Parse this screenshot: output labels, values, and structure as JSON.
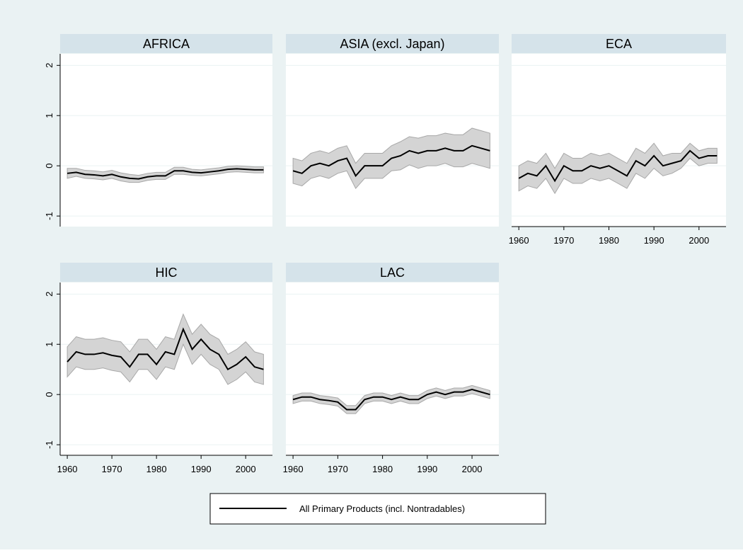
{
  "chart_data": [
    {
      "type": "line",
      "title": "AFRICA",
      "x": [
        1960,
        1962,
        1964,
        1966,
        1968,
        1970,
        1972,
        1974,
        1976,
        1978,
        1980,
        1982,
        1984,
        1986,
        1988,
        1990,
        1992,
        1994,
        1996,
        1998,
        2000,
        2002,
        2004
      ],
      "series": [
        {
          "name": "All Primary Products (incl. Nontradables)",
          "color": "#000000",
          "values": [
            -0.15,
            -0.13,
            -0.17,
            -0.18,
            -0.2,
            -0.17,
            -0.22,
            -0.25,
            -0.26,
            -0.22,
            -0.2,
            -0.2,
            -0.1,
            -0.1,
            -0.13,
            -0.14,
            -0.12,
            -0.1,
            -0.07,
            -0.06,
            -0.07,
            -0.08,
            -0.08
          ],
          "errors": [
            0.1,
            0.08,
            0.08,
            0.08,
            0.08,
            0.08,
            0.08,
            0.08,
            0.07,
            0.07,
            0.07,
            0.07,
            0.07,
            0.07,
            0.06,
            0.06,
            0.06,
            0.06,
            0.06,
            0.06,
            0.06,
            0.06,
            0.06
          ]
        }
      ],
      "xlim": [
        1958.4,
        2006
      ],
      "ylim": [
        -1.21,
        2.23
      ],
      "yticks": [
        -1,
        0,
        1,
        2
      ]
    },
    {
      "type": "line",
      "title": "ASIA (excl. Japan)",
      "x": [
        1960,
        1962,
        1964,
        1966,
        1968,
        1970,
        1972,
        1974,
        1976,
        1978,
        1980,
        1982,
        1984,
        1986,
        1988,
        1990,
        1992,
        1994,
        1996,
        1998,
        2000,
        2002,
        2004
      ],
      "series": [
        {
          "color": "#000000",
          "values": [
            -0.1,
            -0.15,
            0.0,
            0.05,
            0.0,
            0.1,
            0.15,
            -0.2,
            0.0,
            0.0,
            0.0,
            0.15,
            0.2,
            0.3,
            0.25,
            0.3,
            0.3,
            0.35,
            0.3,
            0.3,
            0.4,
            0.35,
            0.3
          ],
          "errors": [
            0.25,
            0.25,
            0.25,
            0.25,
            0.25,
            0.25,
            0.25,
            0.25,
            0.25,
            0.25,
            0.25,
            0.25,
            0.28,
            0.28,
            0.3,
            0.3,
            0.3,
            0.3,
            0.32,
            0.32,
            0.35,
            0.35,
            0.35
          ]
        }
      ],
      "xlim": [
        1958.4,
        2006
      ],
      "ylim": [
        -1.21,
        2.23
      ],
      "yticks": [
        -1,
        0,
        1,
        2
      ]
    },
    {
      "type": "line",
      "title": "ECA",
      "x": [
        1960,
        1962,
        1964,
        1966,
        1968,
        1970,
        1972,
        1974,
        1976,
        1978,
        1980,
        1982,
        1984,
        1986,
        1988,
        1990,
        1992,
        1994,
        1996,
        1998,
        2000,
        2002,
        2004
      ],
      "series": [
        {
          "color": "#000000",
          "values": [
            -0.25,
            -0.15,
            -0.2,
            0.0,
            -0.3,
            0.0,
            -0.1,
            -0.1,
            0.0,
            -0.05,
            0.0,
            -0.1,
            -0.2,
            0.1,
            0.0,
            0.2,
            0.0,
            0.05,
            0.1,
            0.3,
            0.15,
            0.2,
            0.2
          ],
          "errors": [
            0.25,
            0.25,
            0.25,
            0.25,
            0.25,
            0.25,
            0.25,
            0.25,
            0.25,
            0.25,
            0.25,
            0.25,
            0.25,
            0.25,
            0.25,
            0.25,
            0.2,
            0.2,
            0.15,
            0.15,
            0.15,
            0.15,
            0.15
          ]
        }
      ],
      "xlim": [
        1958.4,
        2006
      ],
      "ylim": [
        -1.21,
        2.23
      ],
      "xticks": [
        1960,
        1970,
        1980,
        1990,
        2000
      ],
      "yticks": [
        -1,
        0,
        1,
        2
      ]
    },
    {
      "type": "line",
      "title": "HIC",
      "x": [
        1960,
        1962,
        1964,
        1966,
        1968,
        1970,
        1972,
        1974,
        1976,
        1978,
        1980,
        1982,
        1984,
        1986,
        1988,
        1990,
        1992,
        1994,
        1996,
        1998,
        2000,
        2002,
        2004
      ],
      "series": [
        {
          "color": "#000000",
          "values": [
            0.65,
            0.85,
            0.8,
            0.8,
            0.83,
            0.78,
            0.75,
            0.55,
            0.8,
            0.8,
            0.6,
            0.85,
            0.8,
            1.3,
            0.9,
            1.1,
            0.9,
            0.8,
            0.5,
            0.6,
            0.75,
            0.55,
            0.5
          ],
          "errors": [
            0.3,
            0.3,
            0.3,
            0.3,
            0.3,
            0.3,
            0.3,
            0.3,
            0.3,
            0.3,
            0.3,
            0.3,
            0.3,
            0.3,
            0.3,
            0.3,
            0.3,
            0.3,
            0.3,
            0.3,
            0.3,
            0.3,
            0.3
          ]
        }
      ],
      "xlim": [
        1958.4,
        2006
      ],
      "ylim": [
        -1.21,
        2.23
      ],
      "xticks": [
        1960,
        1970,
        1980,
        1990,
        2000
      ],
      "yticks": [
        -1,
        0,
        1,
        2
      ]
    },
    {
      "type": "line",
      "title": "LAC",
      "x": [
        1960,
        1962,
        1964,
        1966,
        1968,
        1970,
        1972,
        1974,
        1976,
        1978,
        1980,
        1982,
        1984,
        1986,
        1988,
        1990,
        1992,
        1994,
        1996,
        1998,
        2000,
        2002,
        2004
      ],
      "series": [
        {
          "color": "#000000",
          "values": [
            -0.1,
            -0.05,
            -0.05,
            -0.1,
            -0.12,
            -0.15,
            -0.3,
            -0.3,
            -0.1,
            -0.05,
            -0.05,
            -0.1,
            -0.05,
            -0.1,
            -0.1,
            0.0,
            0.05,
            0.0,
            0.05,
            0.05,
            0.1,
            0.05,
            0.0
          ],
          "errors": [
            0.08,
            0.08,
            0.08,
            0.08,
            0.08,
            0.08,
            0.08,
            0.08,
            0.08,
            0.08,
            0.08,
            0.08,
            0.08,
            0.08,
            0.08,
            0.08,
            0.08,
            0.08,
            0.08,
            0.08,
            0.08,
            0.08,
            0.08
          ]
        }
      ],
      "xlim": [
        1958.4,
        2006
      ],
      "ylim": [
        -1.21,
        2.23
      ],
      "xticks": [
        1960,
        1970,
        1980,
        1990,
        2000
      ],
      "yticks": [
        -1,
        0,
        1,
        2
      ]
    }
  ]
}
